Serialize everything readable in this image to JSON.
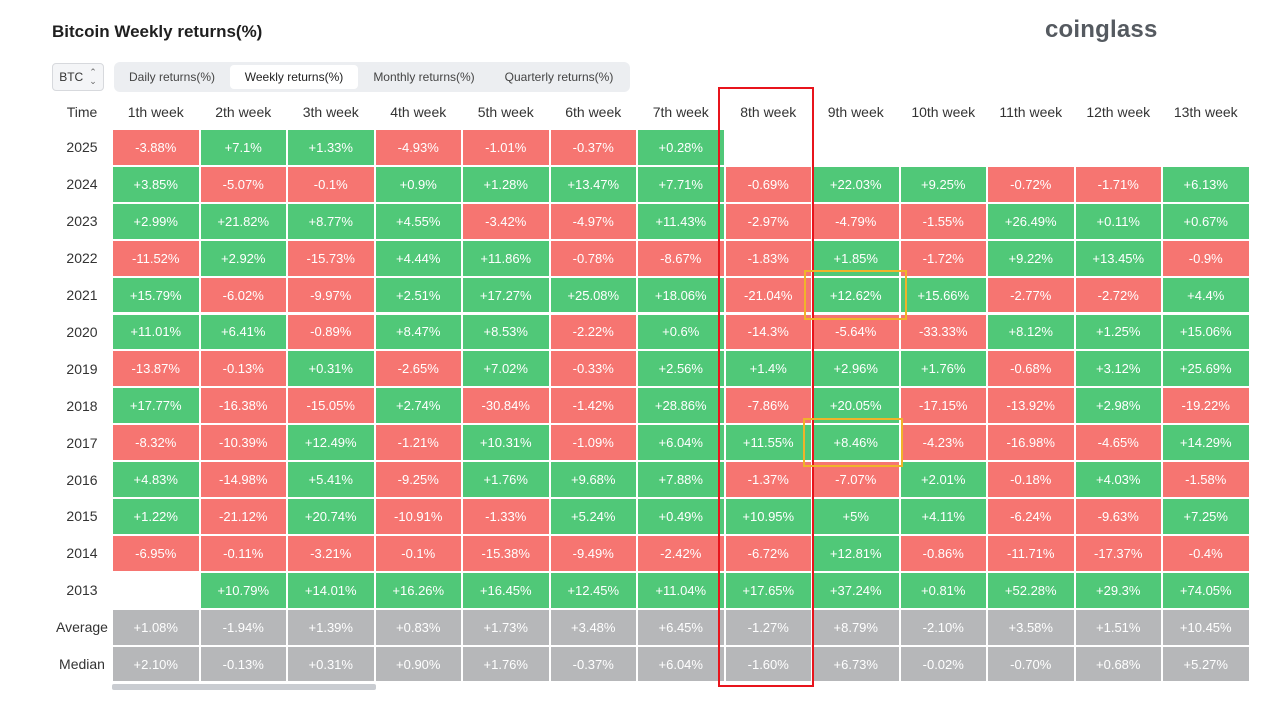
{
  "title": "Bitcoin Weekly returns(%)",
  "brand": "coinglass",
  "asset_select": {
    "value": "BTC",
    "icon": "chevron-updown-icon"
  },
  "tabs": [
    {
      "label": "Daily returns(%)",
      "active": false
    },
    {
      "label": "Weekly returns(%)",
      "active": true
    },
    {
      "label": "Monthly returns(%)",
      "active": false
    },
    {
      "label": "Quarterly returns(%)",
      "active": false
    }
  ],
  "table": {
    "corner_label": "Time",
    "columns": [
      "1th week",
      "2th week",
      "3th week",
      "4th week",
      "5th week",
      "6th week",
      "7th week",
      "8th week",
      "9th week",
      "10th week",
      "11th week",
      "12th week",
      "13th week"
    ],
    "rows": [
      {
        "label": "2025",
        "values": [
          "-3.88%",
          "+7.1%",
          "+1.33%",
          "-4.93%",
          "-1.01%",
          "-0.37%",
          "+0.28%",
          "",
          "",
          "",
          "",
          "",
          ""
        ]
      },
      {
        "label": "2024",
        "values": [
          "+3.85%",
          "-5.07%",
          "-0.1%",
          "+0.9%",
          "+1.28%",
          "+13.47%",
          "+7.71%",
          "-0.69%",
          "+22.03%",
          "+9.25%",
          "-0.72%",
          "-1.71%",
          "+6.13%"
        ]
      },
      {
        "label": "2023",
        "values": [
          "+2.99%",
          "+21.82%",
          "+8.77%",
          "+4.55%",
          "-3.42%",
          "-4.97%",
          "+11.43%",
          "-2.97%",
          "-4.79%",
          "-1.55%",
          "+26.49%",
          "+0.11%",
          "+0.67%"
        ]
      },
      {
        "label": "2022",
        "values": [
          "-11.52%",
          "+2.92%",
          "-15.73%",
          "+4.44%",
          "+11.86%",
          "-0.78%",
          "-8.67%",
          "-1.83%",
          "+1.85%",
          "-1.72%",
          "+9.22%",
          "+13.45%",
          "-0.9%"
        ]
      },
      {
        "label": "2021",
        "values": [
          "+15.79%",
          "-6.02%",
          "-9.97%",
          "+2.51%",
          "+17.27%",
          "+25.08%",
          "+18.06%",
          "-21.04%",
          "+12.62%",
          "+15.66%",
          "-2.77%",
          "-2.72%",
          "+4.4%"
        ]
      },
      {
        "label": "2020",
        "values": [
          "+11.01%",
          "+6.41%",
          "-0.89%",
          "+8.47%",
          "+8.53%",
          "-2.22%",
          "+0.6%",
          "-14.3%",
          "-5.64%",
          "-33.33%",
          "+8.12%",
          "+1.25%",
          "+15.06%"
        ]
      },
      {
        "label": "2019",
        "values": [
          "-13.87%",
          "-0.13%",
          "+0.31%",
          "-2.65%",
          "+7.02%",
          "-0.33%",
          "+2.56%",
          "+1.4%",
          "+2.96%",
          "+1.76%",
          "-0.68%",
          "+3.12%",
          "+25.69%"
        ]
      },
      {
        "label": "2018",
        "values": [
          "+17.77%",
          "-16.38%",
          "-15.05%",
          "+2.74%",
          "-30.84%",
          "-1.42%",
          "+28.86%",
          "-7.86%",
          "+20.05%",
          "-17.15%",
          "-13.92%",
          "+2.98%",
          "-19.22%"
        ]
      },
      {
        "label": "2017",
        "values": [
          "-8.32%",
          "-10.39%",
          "+12.49%",
          "-1.21%",
          "+10.31%",
          "-1.09%",
          "+6.04%",
          "+11.55%",
          "+8.46%",
          "-4.23%",
          "-16.98%",
          "-4.65%",
          "+14.29%"
        ]
      },
      {
        "label": "2016",
        "values": [
          "+4.83%",
          "-14.98%",
          "+5.41%",
          "-9.25%",
          "+1.76%",
          "+9.68%",
          "+7.88%",
          "-1.37%",
          "-7.07%",
          "+2.01%",
          "-0.18%",
          "+4.03%",
          "-1.58%"
        ]
      },
      {
        "label": "2015",
        "values": [
          "+1.22%",
          "-21.12%",
          "+20.74%",
          "-10.91%",
          "-1.33%",
          "+5.24%",
          "+0.49%",
          "+10.95%",
          "+5%",
          "+4.11%",
          "-6.24%",
          "-9.63%",
          "+7.25%"
        ]
      },
      {
        "label": "2014",
        "values": [
          "-6.95%",
          "-0.11%",
          "-3.21%",
          "-0.1%",
          "-15.38%",
          "-9.49%",
          "-2.42%",
          "-6.72%",
          "+12.81%",
          "-0.86%",
          "-11.71%",
          "-17.37%",
          "-0.4%"
        ]
      },
      {
        "label": "2013",
        "values": [
          "",
          "+10.79%",
          "+14.01%",
          "+16.26%",
          "+16.45%",
          "+12.45%",
          "+11.04%",
          "+17.65%",
          "+37.24%",
          "+0.81%",
          "+52.28%",
          "+29.3%",
          "+74.05%"
        ]
      }
    ],
    "summary": [
      {
        "label": "Average",
        "values": [
          "+1.08%",
          "-1.94%",
          "+1.39%",
          "+0.83%",
          "+1.73%",
          "+3.48%",
          "+6.45%",
          "-1.27%",
          "+8.79%",
          "-2.10%",
          "+3.58%",
          "+1.51%",
          "+10.45%"
        ]
      },
      {
        "label": "Median",
        "values": [
          "+2.10%",
          "-0.13%",
          "+0.31%",
          "+0.90%",
          "+1.76%",
          "-0.37%",
          "+6.04%",
          "-1.60%",
          "+6.73%",
          "-0.02%",
          "-0.70%",
          "+0.68%",
          "+5.27%"
        ]
      }
    ]
  },
  "highlights": {
    "column_outline": "8th week",
    "cell_outlines": [
      {
        "row": "2021",
        "column": "9th week"
      },
      {
        "row": "2017",
        "column": "9th week"
      }
    ]
  },
  "colors": {
    "positive": "#50c878",
    "negative": "#f67571",
    "summary": "#b6b7b9",
    "column_outline": "#e8141c",
    "cell_outline": "#f0b32a"
  }
}
